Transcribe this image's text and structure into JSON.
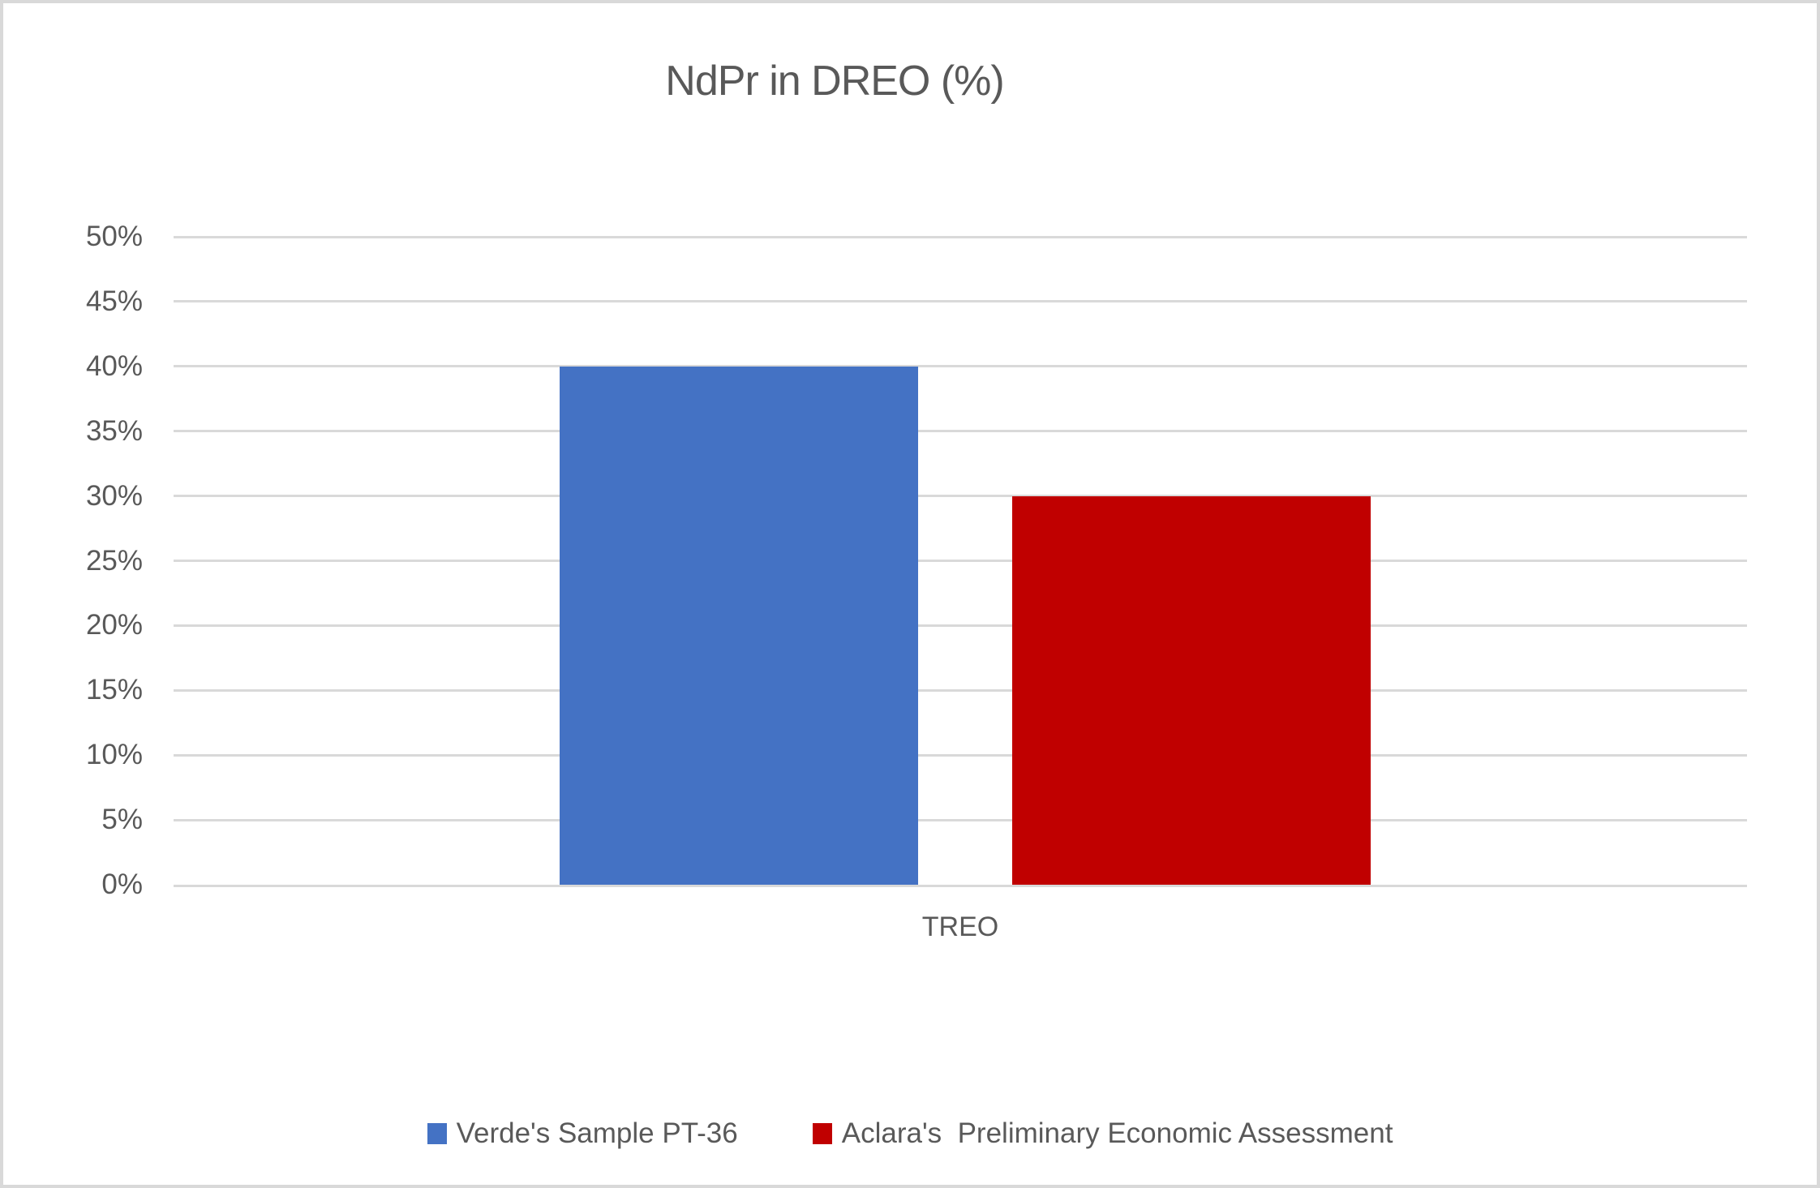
{
  "window": {
    "background": "#ffffff",
    "border_color": "#d9d9d9"
  },
  "chart_data": {
    "type": "bar",
    "title": "NdPr in DREO (%)",
    "categories": [
      "TREO"
    ],
    "series": [
      {
        "name": "Verde's Sample PT-36",
        "values": [
          40
        ],
        "color": "#4472c4"
      },
      {
        "name": "Aclara's  Preliminary Economic Assessment",
        "values": [
          30
        ],
        "color": "#c00000"
      }
    ],
    "ylim": [
      0,
      50
    ],
    "yticks": [
      0,
      5,
      10,
      15,
      20,
      25,
      30,
      35,
      40,
      45,
      50
    ],
    "ytick_labels": [
      "0%",
      "5%",
      "10%",
      "15%",
      "20%",
      "25%",
      "30%",
      "35%",
      "40%",
      "45%",
      "50%"
    ],
    "grid": true,
    "legend_position": "bottom",
    "colors": {
      "text": "#595959",
      "gridline": "#d9d9d9"
    }
  }
}
